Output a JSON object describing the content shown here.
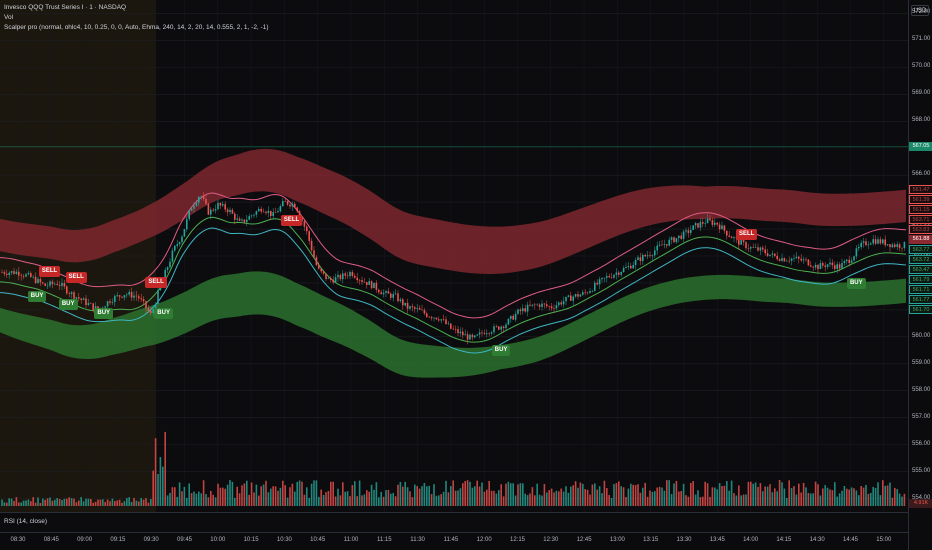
{
  "legend": {
    "title": "Invesco QQQ Trust Series I · 1 · NASDAQ",
    "vol": "Vol",
    "indicator": "Scalper pro (normal, ohlc4, 10, 0.25, 0, 0, Auto, Ehma, 240, 14, 2, 20, 14, 0.555, 2, 1, -2, -1)"
  },
  "currency": "USD",
  "rsi_label": "RSI (14, close)",
  "colors": {
    "background": "#0c0c0e",
    "premarket": "#2a200f",
    "up": "#26a69a",
    "down": "#ef5350",
    "band_red": "#8b2a31",
    "band_green": "#2e7d32",
    "sell": "#c62828",
    "buy": "#2e7d32",
    "current_price": "#1b8a6b"
  },
  "price_scale": {
    "ticks": [
      "572.00",
      "571.00",
      "570.00",
      "569.00",
      "568.00",
      "566.00",
      "565.00",
      "564.00",
      "563.00",
      "562.00",
      "561.00",
      "560.00",
      "559.00",
      "558.00",
      "557.00",
      "556.00",
      "555.00",
      "554.00"
    ],
    "current_price": "567.05",
    "tags": [
      {
        "text": "561.47",
        "kind": "red"
      },
      {
        "text": "561.39",
        "kind": "red"
      },
      {
        "text": "561.15",
        "kind": "red"
      },
      {
        "text": "563.71",
        "kind": "red"
      },
      {
        "text": "563.83",
        "kind": "red"
      },
      {
        "text": "561.88",
        "kind": "red-solid"
      },
      {
        "text": "563.77",
        "kind": "green"
      },
      {
        "text": "563.72",
        "kind": "green"
      },
      {
        "text": "563.47",
        "kind": "green"
      },
      {
        "text": "561.79",
        "kind": "green"
      },
      {
        "text": "561.71",
        "kind": "green"
      },
      {
        "text": "561.77",
        "kind": "green"
      },
      {
        "text": "561.70",
        "kind": "green"
      }
    ],
    "volume_tag": "4.91K"
  },
  "time_axis": [
    "08:30",
    "08:45",
    "09:00",
    "09:15",
    "09:30",
    "09:45",
    "10:00",
    "10:15",
    "10:30",
    "10:45",
    "11:00",
    "11:15",
    "11:30",
    "11:45",
    "12:00",
    "12:15",
    "12:30",
    "12:45",
    "13:00",
    "13:15",
    "13:30",
    "13:45",
    "14:00",
    "14:15",
    "14:30",
    "14:45",
    "15:00"
  ],
  "signals": [
    {
      "type": "sell",
      "label": "SELL",
      "time": "08:43",
      "price": 562.1
    },
    {
      "type": "buy",
      "label": "BUY",
      "time": "08:38",
      "price": 561.8
    },
    {
      "type": "sell",
      "label": "SELL",
      "time": "08:55",
      "price": 561.9
    },
    {
      "type": "buy",
      "label": "BUY",
      "time": "08:52",
      "price": 561.5
    },
    {
      "type": "buy",
      "label": "BUY",
      "time": "09:08",
      "price": 561.2
    },
    {
      "type": "sell",
      "label": "SELL",
      "time": "09:31",
      "price": 561.7
    },
    {
      "type": "buy",
      "label": "BUY",
      "time": "09:35",
      "price": 561.2
    },
    {
      "type": "sell",
      "label": "SELL",
      "time": "10:32",
      "price": 564.0
    },
    {
      "type": "buy",
      "label": "BUY",
      "time": "12:07",
      "price": 559.8
    },
    {
      "type": "sell",
      "label": "SELL",
      "time": "13:57",
      "price": 563.5
    },
    {
      "type": "buy",
      "label": "BUY",
      "time": "14:47",
      "price": 562.3
    }
  ],
  "chart_data": {
    "type": "candlestick",
    "symbol": "Invesco QQQ Trust Series I",
    "interval": "1",
    "exchange": "NASDAQ",
    "y_range": [
      553.5,
      572.5
    ],
    "close_path": [
      [
        "08:30",
        562.4
      ],
      [
        "08:36",
        562.2
      ],
      [
        "08:42",
        561.9
      ],
      [
        "08:48",
        562.0
      ],
      [
        "08:54",
        561.6
      ],
      [
        "09:00",
        561.3
      ],
      [
        "09:06",
        561.0
      ],
      [
        "09:12",
        561.4
      ],
      [
        "09:18",
        561.6
      ],
      [
        "09:24",
        561.5
      ],
      [
        "09:30",
        560.8
      ],
      [
        "09:33",
        561.6
      ],
      [
        "09:36",
        562.3
      ],
      [
        "09:40",
        563.2
      ],
      [
        "09:44",
        563.8
      ],
      [
        "09:48",
        564.8
      ],
      [
        "09:52",
        565.3
      ],
      [
        "09:56",
        564.6
      ],
      [
        "10:00",
        564.9
      ],
      [
        "10:05",
        564.7
      ],
      [
        "10:10",
        564.2
      ],
      [
        "10:15",
        564.5
      ],
      [
        "10:20",
        564.8
      ],
      [
        "10:25",
        564.5
      ],
      [
        "10:30",
        565.0
      ],
      [
        "10:35",
        564.9
      ],
      [
        "10:40",
        563.9
      ],
      [
        "10:45",
        562.5
      ],
      [
        "10:50",
        562.1
      ],
      [
        "10:55",
        562.2
      ],
      [
        "11:00",
        562.4
      ],
      [
        "11:05",
        562.1
      ],
      [
        "11:10",
        561.9
      ],
      [
        "11:15",
        561.6
      ],
      [
        "11:20",
        561.5
      ],
      [
        "11:25",
        561.1
      ],
      [
        "11:30",
        561.0
      ],
      [
        "11:35",
        560.8
      ],
      [
        "11:40",
        560.7
      ],
      [
        "11:45",
        560.3
      ],
      [
        "11:50",
        560.1
      ],
      [
        "11:55",
        559.9
      ],
      [
        "12:00",
        560.2
      ],
      [
        "12:05",
        560.3
      ],
      [
        "12:10",
        560.5
      ],
      [
        "12:15",
        560.9
      ],
      [
        "12:20",
        561.1
      ],
      [
        "12:25",
        561.2
      ],
      [
        "12:30",
        561.1
      ],
      [
        "12:35",
        561.3
      ],
      [
        "12:40",
        561.5
      ],
      [
        "12:45",
        561.6
      ],
      [
        "12:50",
        561.9
      ],
      [
        "12:55",
        562.2
      ],
      [
        "13:00",
        562.4
      ],
      [
        "13:05",
        562.6
      ],
      [
        "13:10",
        562.9
      ],
      [
        "13:15",
        563.1
      ],
      [
        "13:20",
        563.4
      ],
      [
        "13:25",
        563.6
      ],
      [
        "13:30",
        563.8
      ],
      [
        "13:35",
        564.1
      ],
      [
        "13:40",
        564.3
      ],
      [
        "13:45",
        564.2
      ],
      [
        "13:50",
        563.8
      ],
      [
        "13:55",
        563.5
      ],
      [
        "14:00",
        563.3
      ],
      [
        "14:05",
        563.2
      ],
      [
        "14:10",
        563.0
      ],
      [
        "14:15",
        562.9
      ],
      [
        "14:20",
        562.9
      ],
      [
        "14:25",
        562.8
      ],
      [
        "14:30",
        562.6
      ],
      [
        "14:35",
        562.7
      ],
      [
        "14:40",
        562.6
      ],
      [
        "14:45",
        562.9
      ],
      [
        "14:50",
        563.4
      ],
      [
        "14:55",
        563.6
      ],
      [
        "15:00",
        563.5
      ],
      [
        "15:05",
        563.4
      ]
    ],
    "volume_peak": {
      "time": "09:30",
      "value": "high"
    }
  }
}
